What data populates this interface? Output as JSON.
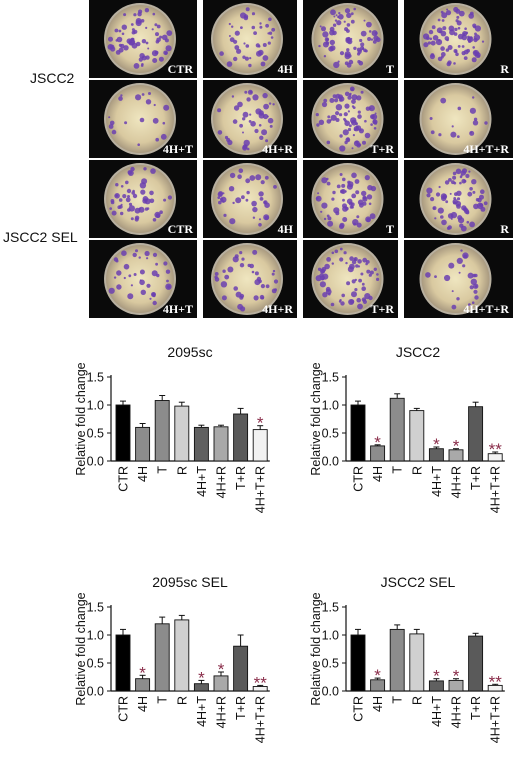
{
  "figure": {
    "row_labels": [
      "JSCC2",
      "JSCC2 SEL"
    ],
    "well_labels": [
      "CTR",
      "4H",
      "T",
      "R",
      "4H+T",
      "4H+R",
      "T+R",
      "4H+T+R"
    ],
    "well_colors": {
      "dish_dark": "#4a2a78",
      "colony": "#e8dfb0",
      "purple": "#6b3fb0"
    }
  },
  "chart_data": [
    {
      "type": "bar",
      "title": "2095sc",
      "ylabel": "Relative fold change",
      "categories": [
        "CTR",
        "4H",
        "T",
        "R",
        "4H+T",
        "4H+R",
        "T+R",
        "4H+T+R"
      ],
      "values": [
        1.0,
        0.6,
        1.08,
        0.98,
        0.6,
        0.61,
        0.84,
        0.56
      ],
      "errors": [
        0.07,
        0.07,
        0.09,
        0.07,
        0.04,
        0.03,
        0.1,
        0.07
      ],
      "significance": [
        "",
        "",
        "",
        "",
        "",
        "",
        "",
        "*"
      ],
      "ylim": [
        0,
        1.5
      ],
      "yticks": [
        "0.0",
        "0.5",
        "1.0",
        "1.5"
      ]
    },
    {
      "type": "bar",
      "title": "JSCC2",
      "ylabel": "Relative fold change",
      "categories": [
        "CTR",
        "4H",
        "T",
        "R",
        "4H+T",
        "4H+R",
        "T+R",
        "4H+T+R"
      ],
      "values": [
        1.0,
        0.27,
        1.12,
        0.9,
        0.22,
        0.2,
        0.97,
        0.13
      ],
      "errors": [
        0.07,
        0.02,
        0.08,
        0.04,
        0.03,
        0.02,
        0.08,
        0.03
      ],
      "significance": [
        "",
        "*",
        "",
        "",
        "*",
        "*",
        "",
        "**"
      ],
      "ylim": [
        0,
        1.5
      ],
      "yticks": [
        "0.0",
        "0.5",
        "1.0",
        "1.5"
      ]
    },
    {
      "type": "bar",
      "title": "2095sc SEL",
      "ylabel": "Relative fold change",
      "categories": [
        "CTR",
        "4H",
        "T",
        "R",
        "4H+T",
        "4H+R",
        "T+R",
        "4H+T+R"
      ],
      "values": [
        1.0,
        0.22,
        1.2,
        1.27,
        0.13,
        0.27,
        0.8,
        0.08
      ],
      "errors": [
        0.1,
        0.06,
        0.12,
        0.08,
        0.06,
        0.07,
        0.2,
        0.02
      ],
      "significance": [
        "",
        "*",
        "",
        "",
        "*",
        "*",
        "",
        "**"
      ],
      "ylim": [
        0,
        1.5
      ],
      "yticks": [
        "0.0",
        "0.5",
        "1.0",
        "1.5"
      ]
    },
    {
      "type": "bar",
      "title": "JSCC2 SEL",
      "ylabel": "Relative fold change",
      "categories": [
        "CTR",
        "4H",
        "T",
        "R",
        "4H+T",
        "4H+R",
        "T+R",
        "4H+T+R"
      ],
      "values": [
        1.0,
        0.2,
        1.1,
        1.02,
        0.18,
        0.19,
        0.98,
        0.1
      ],
      "errors": [
        0.1,
        0.03,
        0.08,
        0.08,
        0.04,
        0.03,
        0.05,
        0.02
      ],
      "significance": [
        "",
        "*",
        "",
        "",
        "*",
        "*",
        "",
        "**"
      ],
      "ylim": [
        0,
        1.5
      ],
      "yticks": [
        "0.0",
        "0.5",
        "1.0",
        "1.5"
      ]
    }
  ]
}
